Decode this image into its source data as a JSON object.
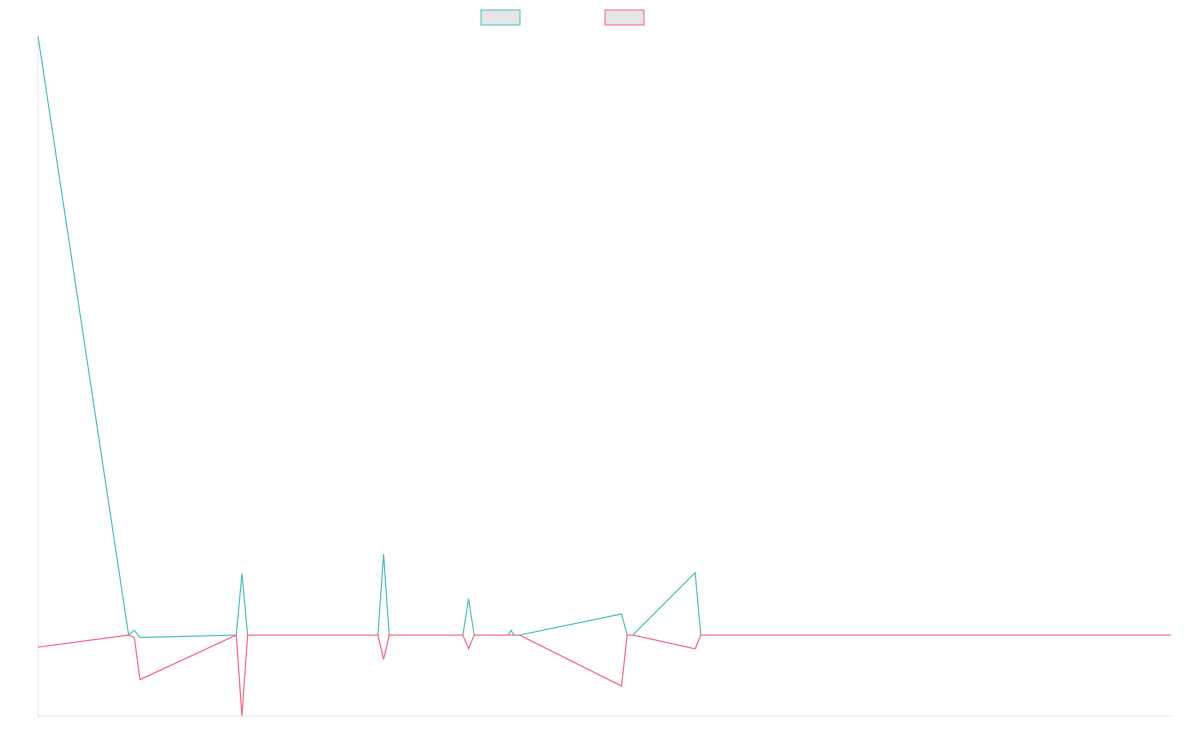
{
  "chart_data": {
    "type": "line",
    "title": "",
    "xlabel": "",
    "ylabel": "",
    "legend_position": "top-center",
    "grid": false,
    "x": [
      0,
      16,
      17,
      18,
      35,
      36,
      37,
      60,
      61,
      62,
      75,
      76,
      77,
      85,
      103,
      104,
      105,
      116,
      117,
      118,
      200
    ],
    "xlim": [
      0,
      200
    ],
    "ylim": [
      -100,
      740
    ],
    "series": [
      {
        "name": "",
        "color": "#4bc0c0",
        "fill": "#e5e5e5",
        "values": [
          740,
          0,
          6,
          -3,
          0,
          76,
          0,
          0,
          100,
          0,
          0,
          45,
          0,
          0,
          26,
          0,
          0,
          77,
          0,
          0,
          0
        ],
        "extra_points": [
          {
            "x": 83,
            "y": 0
          },
          {
            "x": 83.5,
            "y": 6
          },
          {
            "x": 84,
            "y": 0
          }
        ]
      },
      {
        "name": "",
        "color": "#ff6384",
        "fill": "#e5e5e5",
        "values": [
          -15,
          0,
          -3,
          -55,
          0,
          -100,
          0,
          0,
          -30,
          0,
          0,
          -17,
          0,
          0,
          -63,
          0,
          0,
          -17,
          0,
          0,
          0
        ],
        "extra_points": []
      }
    ]
  }
}
